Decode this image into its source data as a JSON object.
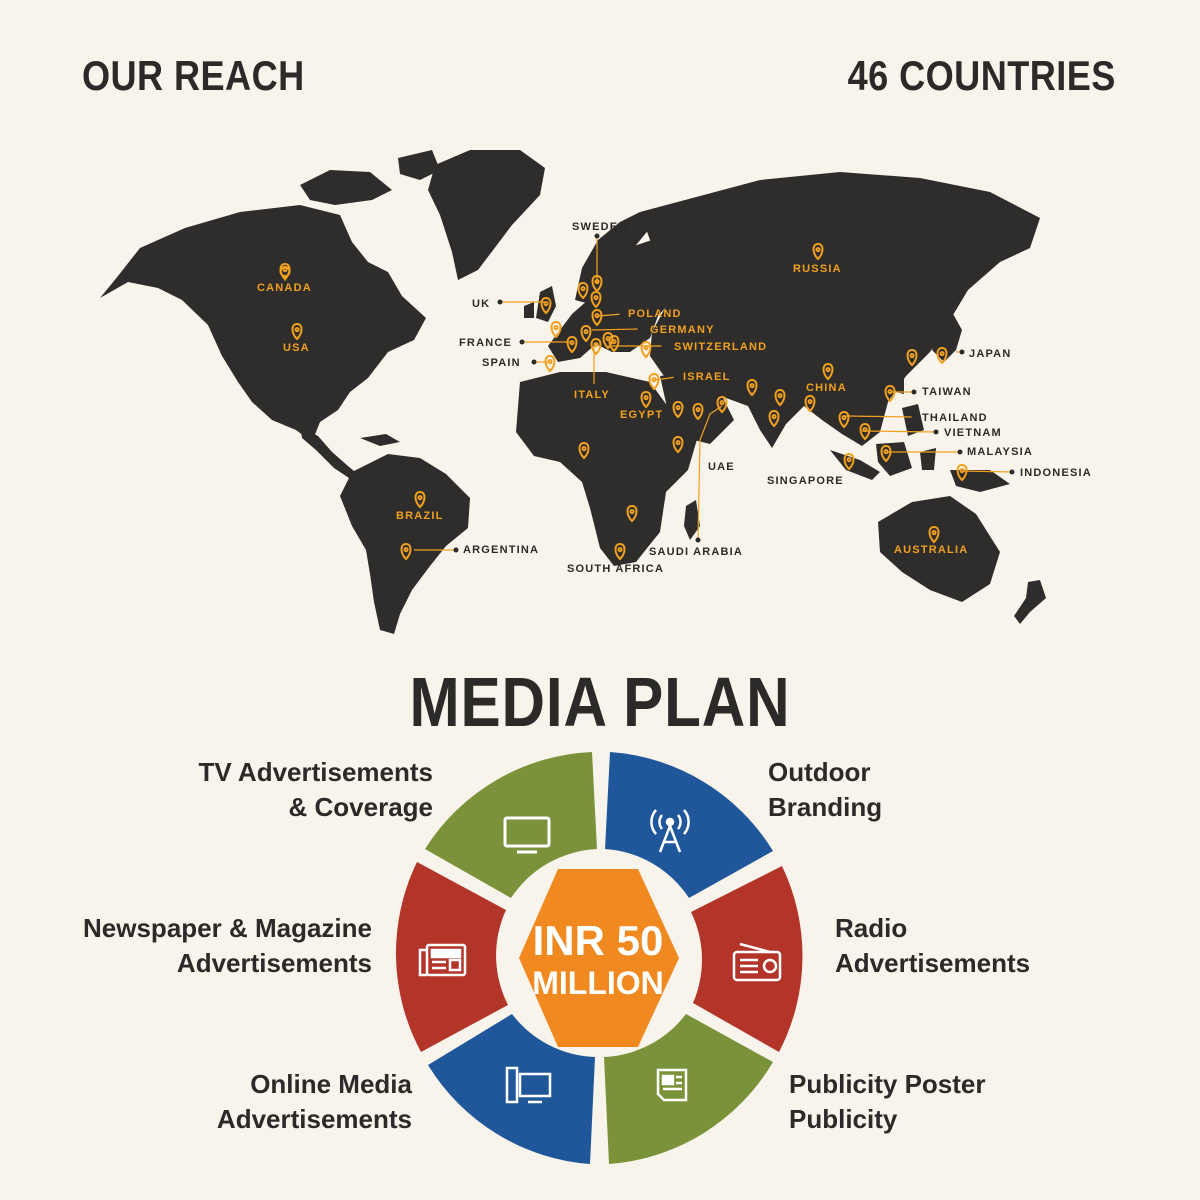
{
  "header": {
    "reach_title": "OUR REACH",
    "countries": "46 COUNTRIES"
  },
  "map": {
    "land_color": "#2e2d2b",
    "pin_color": "#f2a11f",
    "labels": {
      "canada": "CANADA",
      "usa": "USA",
      "brazil": "BRAZIL",
      "argentina": "ARGENTINA",
      "sweden": "SWEDEN",
      "uk": "UK",
      "poland": "POLAND",
      "germany": "GERMANY",
      "france": "FRANCE",
      "switzerland": "SWITZERLAND",
      "spain": "SPAIN",
      "italy": "ITALY",
      "israel": "ISRAEL",
      "egypt": "EGYPT",
      "uae": "UAE",
      "saudi_arabia": "SAUDI ARABIA",
      "south_africa": "SOUTH AFRICA",
      "russia": "RUSSIA",
      "china": "CHINA",
      "japan": "JAPAN",
      "taiwan": "TAIWAN",
      "thailand": "THAILAND",
      "vietnam": "VIETNAM",
      "malaysia": "MALAYSIA",
      "singapore": "SINGAPORE",
      "indonesia": "INDONESIA",
      "australia": "AUSTRALIA"
    }
  },
  "media": {
    "title": "MEDIA PLAN",
    "center_line1": "INR 50",
    "center_line2": "MILLION",
    "colors": {
      "green": "#7a933b",
      "blue": "#20579b",
      "red": "#b3352a",
      "orange": "#f0891f"
    },
    "segments": {
      "tv": {
        "line1": "TV Advertisements",
        "line2": "& Coverage",
        "icon": "tv-icon"
      },
      "outdoor": {
        "line1": "Outdoor",
        "line2": "Branding",
        "icon": "antenna-icon"
      },
      "newspaper": {
        "line1": "Newspaper & Magazine",
        "line2": "Advertisements",
        "icon": "newspaper-icon"
      },
      "radio": {
        "line1": "Radio",
        "line2": "Advertisements",
        "icon": "radio-icon"
      },
      "online": {
        "line1": "Online Media",
        "line2": "Advertisements",
        "icon": "computer-icon"
      },
      "poster": {
        "line1": "Publicity Poster",
        "line2": "Publicity",
        "icon": "poster-icon"
      }
    }
  }
}
